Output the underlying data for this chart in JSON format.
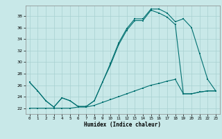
{
  "title": "",
  "xlabel": "Humidex (Indice chaleur)",
  "bg_color": "#c8e8e8",
  "grid_color": "#a8d0d0",
  "line_color": "#007070",
  "xlim": [
    -0.5,
    23.5
  ],
  "ylim": [
    21.0,
    39.8
  ],
  "yticks": [
    22,
    24,
    26,
    28,
    30,
    32,
    34,
    36,
    38
  ],
  "xticks": [
    0,
    1,
    2,
    3,
    4,
    5,
    6,
    7,
    8,
    9,
    10,
    11,
    12,
    13,
    14,
    15,
    16,
    17,
    18,
    19,
    20,
    21,
    22,
    23
  ],
  "line1_x": [
    0,
    1,
    2,
    3,
    4,
    5,
    6,
    7,
    8,
    9,
    10,
    11,
    12,
    13,
    14,
    15,
    16,
    17,
    18,
    19,
    20,
    21,
    22,
    23
  ],
  "line1_y": [
    26.5,
    25.0,
    23.3,
    22.2,
    23.8,
    23.3,
    22.3,
    22.3,
    23.3,
    26.5,
    29.8,
    33.3,
    35.8,
    37.5,
    37.5,
    39.2,
    39.2,
    38.5,
    37.0,
    37.5,
    36.0,
    31.5,
    27.0,
    25.0
  ],
  "line2_x": [
    0,
    1,
    2,
    3,
    4,
    5,
    6,
    7,
    8,
    9,
    10,
    11,
    12,
    13,
    14,
    15,
    16,
    17,
    18,
    19,
    20,
    21,
    22,
    23
  ],
  "line2_y": [
    26.5,
    25.0,
    23.3,
    22.2,
    23.8,
    23.3,
    22.3,
    22.3,
    23.3,
    26.5,
    29.5,
    33.0,
    35.5,
    37.2,
    37.2,
    39.0,
    38.5,
    37.8,
    36.5,
    24.5,
    24.5,
    24.8,
    25.0,
    25.0
  ],
  "line3_x": [
    0,
    1,
    2,
    3,
    4,
    5,
    6,
    7,
    8,
    9,
    10,
    11,
    12,
    13,
    14,
    15,
    16,
    17,
    18,
    19,
    20,
    21,
    22,
    23
  ],
  "line3_y": [
    22.0,
    22.0,
    22.0,
    22.0,
    22.0,
    22.0,
    22.2,
    22.2,
    22.5,
    23.0,
    23.5,
    24.0,
    24.5,
    25.0,
    25.5,
    26.0,
    26.3,
    26.7,
    27.0,
    24.5,
    24.5,
    24.8,
    25.0,
    25.0
  ]
}
